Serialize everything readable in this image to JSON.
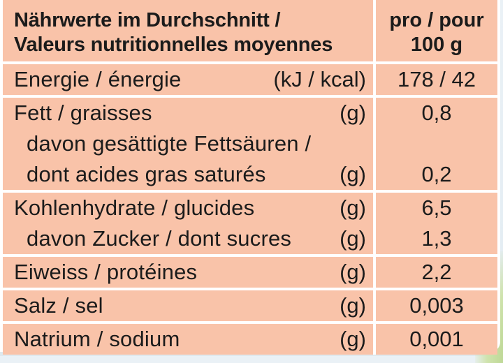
{
  "header": {
    "title_line1": "Nährwerte im Durchschnitt /",
    "title_line2": "Valeurs nutritionnelles moyennes",
    "per_line1": "pro / pour",
    "per_line2": "100 g"
  },
  "rows": [
    {
      "name": "Energie / énergie",
      "unit": "(kJ / kcal)",
      "value": "178 / 42"
    },
    {
      "name": "Fett / graisses",
      "unit": "(g)",
      "value": "0,8"
    },
    {
      "name": "davon gesättigte Fettsäuren /",
      "unit": "",
      "value": ""
    },
    {
      "name": "dont acides gras saturés",
      "unit": "(g)",
      "value": "0,2"
    },
    {
      "name": "Kohlenhydrate / glucides",
      "unit": "(g)",
      "value": "6,5"
    },
    {
      "name": "davon Zucker / dont sucres",
      "unit": "(g)",
      "value": "1,3"
    },
    {
      "name": "Eiweiss / protéines",
      "unit": "(g)",
      "value": "2,2"
    },
    {
      "name": "Salz / sel",
      "unit": "(g)",
      "value": "0,003"
    },
    {
      "name": "Natrium / sodium",
      "unit": "(g)",
      "value": "0,001"
    }
  ]
}
